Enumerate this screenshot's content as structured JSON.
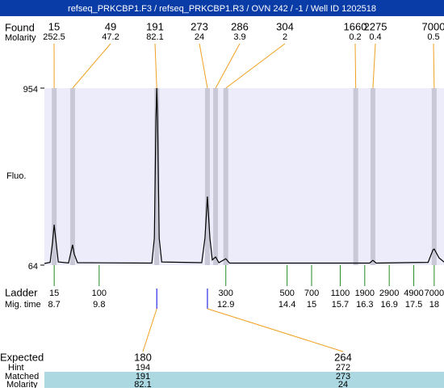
{
  "title": "refseq_PRKCBP1.F3 / refseq_PRKCBP1.R3 / OVN 242 / -1 / Well ID 1202518",
  "chart_data": {
    "type": "line",
    "y_label": "Fluo.",
    "color": "#000000",
    "xlim": [
      8.46,
      18.24
    ],
    "ylim": [
      64,
      954
    ],
    "yticks": [
      64,
      954
    ],
    "x": [
      8.46,
      8.6,
      8.66,
      8.7,
      8.74,
      8.8,
      9.05,
      9.11,
      9.15,
      9.19,
      9.27,
      11.09,
      11.15,
      11.19,
      11.21,
      11.23,
      11.27,
      11.33,
      12.31,
      12.39,
      12.45,
      12.51,
      12.57,
      12.65,
      12.73,
      12.9,
      12.99,
      16.42,
      16.5,
      16.58,
      17.85,
      17.97,
      18.0,
      18.12,
      18.24
    ],
    "values": [
      72,
      78,
      180,
      267,
      190,
      80,
      75,
      130,
      166,
      120,
      76,
      74,
      200,
      800,
      954,
      800,
      200,
      80,
      76,
      200,
      409,
      200,
      90,
      105,
      76,
      96,
      74,
      74,
      88,
      74,
      78,
      140,
      145,
      100,
      80
    ],
    "found": {
      "label": "Found",
      "molarity_label": "Molarity",
      "sizes": [
        15,
        49,
        191,
        273,
        286,
        304,
        1660,
        2275,
        7000
      ],
      "molarity": [
        252.5,
        47.2,
        82.1,
        24,
        3.9,
        2,
        0.2,
        0.4,
        0.5
      ],
      "times": [
        8.7,
        9.15,
        11.21,
        12.45,
        12.65,
        12.9,
        16.08,
        16.5,
        18.0
      ]
    },
    "ladder": {
      "label": "Ladder",
      "time_label": "Mig. time",
      "sizes": [
        15,
        100,
        300,
        500,
        700,
        1100,
        1900,
        2900,
        4900,
        7000
      ],
      "times": [
        8.7,
        9.8,
        12.9,
        14.4,
        15,
        15.7,
        16.3,
        16.9,
        17.5,
        18
      ]
    },
    "expected": {
      "label": "Expected",
      "hint_label": "Hint",
      "matched_label": "Matched",
      "molarity_label": "Molarity",
      "sizes": [
        180,
        264
      ],
      "hint": [
        194,
        272
      ],
      "matched": [
        191,
        273
      ],
      "molarity": [
        82.1,
        24
      ],
      "times": [
        11.21,
        12.45
      ]
    }
  }
}
